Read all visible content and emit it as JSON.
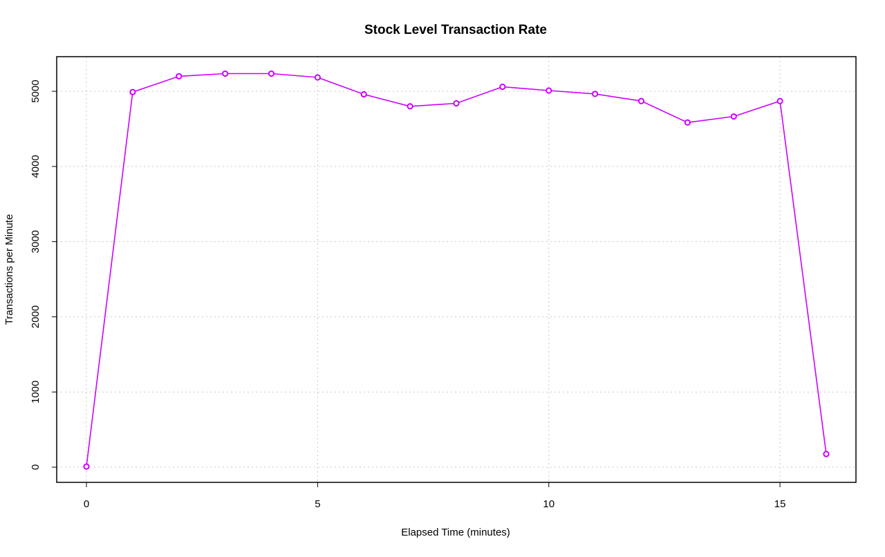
{
  "chart_data": {
    "type": "line",
    "title": "Stock Level Transaction Rate",
    "xlabel": "Elapsed Time (minutes)",
    "ylabel": "Transactions per Minute",
    "xlim": [
      0,
      16
    ],
    "ylim": [
      0,
      5240
    ],
    "x_ticks": [
      0,
      5,
      10,
      15
    ],
    "y_ticks": [
      0,
      1000,
      2000,
      3000,
      4000,
      5000
    ],
    "grid": true,
    "series": [
      {
        "color": "#cc00ff",
        "marker": "open-circle",
        "x": [
          0,
          1,
          2,
          3,
          4,
          5,
          6,
          7,
          8,
          9,
          10,
          11,
          12,
          13,
          14,
          15,
          16
        ],
        "y": [
          8,
          4990,
          5200,
          5235,
          5235,
          5185,
          4960,
          4800,
          4840,
          5060,
          5010,
          4965,
          4870,
          4585,
          4665,
          4870,
          175
        ]
      }
    ]
  }
}
